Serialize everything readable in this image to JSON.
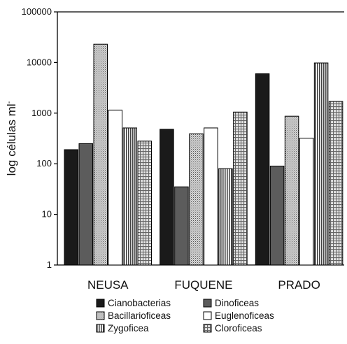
{
  "chart_data": {
    "type": "bar",
    "ylabel": "log células ml",
    "ylabel_superscript": "-",
    "yscale": "log",
    "ylim": [
      1,
      100000
    ],
    "yticks": [
      "1",
      "10",
      "100",
      "1000",
      "10000",
      "100000"
    ],
    "grid": false,
    "legend_position": "bottom",
    "categories": [
      "NEUSA",
      "FUQUENE",
      "PRADO"
    ],
    "series": [
      {
        "name": "Cianobacterias",
        "values": [
          190,
          480,
          6000
        ],
        "pattern": "solid-black"
      },
      {
        "name": "Dinoficeas",
        "values": [
          250,
          35,
          90
        ],
        "pattern": "solid-gray"
      },
      {
        "name": "Bacillarioficeas",
        "values": [
          23000,
          390,
          870
        ],
        "pattern": "fine-dots"
      },
      {
        "name": "Euglenoficeas",
        "values": [
          1150,
          510,
          320
        ],
        "pattern": "white"
      },
      {
        "name": "Zygoficea",
        "values": [
          510,
          80,
          9800
        ],
        "pattern": "vertical-stripes"
      },
      {
        "name": "Cloroficeas",
        "values": [
          280,
          1050,
          1700
        ],
        "pattern": "grid"
      }
    ]
  }
}
